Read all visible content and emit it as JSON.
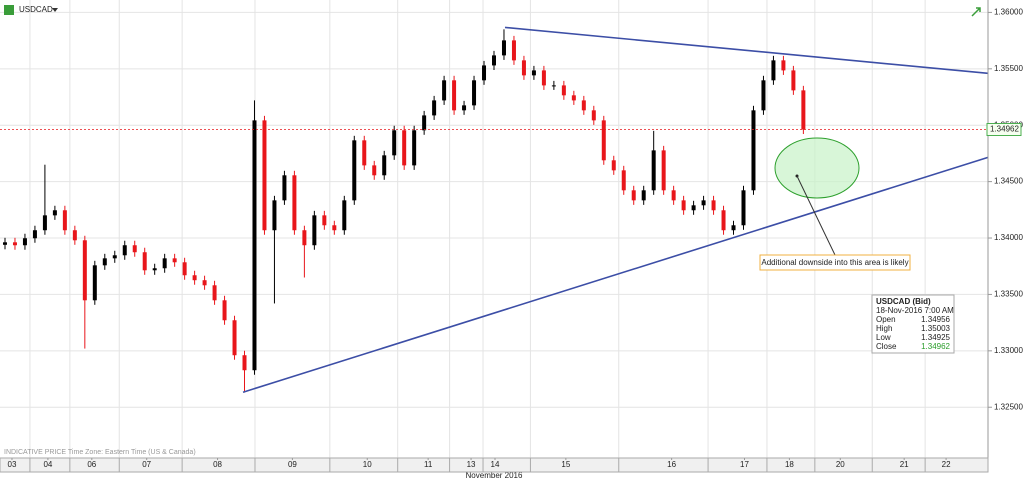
{
  "chart_data": {
    "type": "candlestick",
    "title": "USDCAD",
    "note": "INDICATIVE PRICE  Time Zone: Eastern Time (US & Canada)",
    "xlabel": "November 2016",
    "annotation": "Additional downside into this area is likely",
    "up_color": "#000000",
    "down_color": "#e8161b",
    "trendline_color": "#3c4ea6",
    "grid": true,
    "xlim": [
      0,
      99
    ],
    "ylim": [
      1.3205,
      1.3611
    ],
    "yticks": [
      {
        "value": 1.325,
        "label": "1.32500"
      },
      {
        "value": 1.33,
        "label": "1.33000"
      },
      {
        "value": 1.335,
        "label": "1.33500"
      },
      {
        "value": 1.34,
        "label": "1.34000"
      },
      {
        "value": 1.345,
        "label": "1.34500"
      },
      {
        "value": 1.35,
        "label": "1.35000"
      },
      {
        "value": 1.355,
        "label": "1.35500"
      },
      {
        "value": 1.36,
        "label": "1.36000"
      }
    ],
    "xticks": [
      {
        "value": 1.2,
        "label": "03"
      },
      {
        "value": 4.8,
        "label": "04"
      },
      {
        "value": 9.2,
        "label": "06"
      },
      {
        "value": 14.7,
        "label": "07"
      },
      {
        "value": 21.8,
        "label": "08"
      },
      {
        "value": 29.3,
        "label": "09"
      },
      {
        "value": 36.8,
        "label": "10"
      },
      {
        "value": 42.9,
        "label": "11"
      },
      {
        "value": 47.2,
        "label": "13"
      },
      {
        "value": 49.6,
        "label": "14"
      },
      {
        "value": 56.7,
        "label": "15"
      },
      {
        "value": 67.3,
        "label": "16"
      },
      {
        "value": 74.6,
        "label": "17"
      },
      {
        "value": 79.1,
        "label": "18"
      },
      {
        "value": 84.2,
        "label": "20"
      },
      {
        "value": 90.6,
        "label": "21"
      },
      {
        "value": 94.8,
        "label": "22"
      }
    ],
    "x": [
      0.5,
      1.5,
      2.5,
      3.5,
      4.5,
      5.5,
      6.5,
      7.5,
      8.5,
      9.5,
      10.5,
      11.5,
      12.5,
      13.5,
      14.5,
      15.5,
      16.5,
      17.5,
      18.5,
      19.5,
      20.5,
      21.5,
      22.5,
      23.5,
      24.5,
      25.5,
      26.5,
      27.5,
      28.5,
      29.5,
      30.5,
      31.5,
      32.5,
      33.5,
      34.5,
      35.5,
      36.5,
      37.5,
      38.5,
      39.5,
      40.5,
      41.5,
      42.5,
      43.5,
      44.5,
      45.5,
      46.5,
      47.5,
      48.5,
      49.5,
      50.5,
      51.5,
      52.5,
      53.5,
      54.5,
      55.5,
      56.5,
      57.5,
      58.5,
      59.5,
      60.5,
      61.5,
      62.5,
      63.5,
      64.5,
      65.5,
      66.5,
      67.5,
      68.5,
      69.5,
      70.5,
      71.5,
      72.5,
      73.5,
      74.5,
      75.5,
      76.5,
      77.5,
      78.5,
      79.5,
      80.5
    ],
    "open": [
      1.3394,
      1.33962,
      1.33936,
      1.33998,
      1.34069,
      1.34201,
      1.34246,
      1.34069,
      1.3398,
      1.33448,
      1.33758,
      1.3382,
      1.33847,
      1.33936,
      1.33874,
      1.33714,
      1.33732,
      1.3382,
      1.33785,
      1.3367,
      1.33626,
      1.33581,
      1.33448,
      1.33271,
      1.32961,
      1.32828,
      1.35043,
      1.34069,
      1.34334,
      1.34556,
      1.34069,
      1.33936,
      1.34201,
      1.34113,
      1.34069,
      1.34334,
      1.34866,
      1.34644,
      1.34556,
      1.34733,
      1.34955,
      1.34644,
      1.34955,
      1.35087,
      1.3522,
      1.35398,
      1.35132,
      1.35176,
      1.35398,
      1.3553,
      1.35619,
      1.35752,
      1.35575,
      1.35442,
      1.35486,
      1.35353,
      1.35353,
      1.35265,
      1.3522,
      1.35132,
      1.35043,
      1.34689,
      1.346,
      1.34423,
      1.34334,
      1.34423,
      1.34777,
      1.34423,
      1.34334,
      1.34246,
      1.3429,
      1.34334,
      1.34246,
      1.34069,
      1.34113,
      1.34423,
      1.35132,
      1.35398,
      1.35575,
      1.35486,
      1.35309
    ],
    "high": [
      1.34002,
      1.34002,
      1.34038,
      1.34109,
      1.3465,
      1.34286,
      1.34286,
      1.34109,
      1.3402,
      1.33798,
      1.3386,
      1.33887,
      1.33976,
      1.33976,
      1.33914,
      1.33772,
      1.3386,
      1.3386,
      1.33825,
      1.3371,
      1.33666,
      1.33621,
      1.33488,
      1.33311,
      1.33001,
      1.3522,
      1.35083,
      1.34374,
      1.34596,
      1.34596,
      1.34109,
      1.34241,
      1.34241,
      1.34153,
      1.34374,
      1.34906,
      1.34906,
      1.34684,
      1.34773,
      1.34995,
      1.34995,
      1.34995,
      1.35127,
      1.3526,
      1.35438,
      1.35438,
      1.35216,
      1.35438,
      1.3557,
      1.35659,
      1.3585,
      1.35792,
      1.35615,
      1.35526,
      1.35526,
      1.35393,
      1.35393,
      1.35305,
      1.3526,
      1.35172,
      1.35083,
      1.34729,
      1.3464,
      1.34463,
      1.34463,
      1.3495,
      1.34817,
      1.34463,
      1.34374,
      1.3433,
      1.34374,
      1.34374,
      1.34286,
      1.34153,
      1.34463,
      1.35172,
      1.35438,
      1.35615,
      1.35615,
      1.35526,
      1.35349
    ],
    "low": [
      1.339,
      1.33896,
      1.33896,
      1.33958,
      1.34029,
      1.34161,
      1.34029,
      1.3394,
      1.3302,
      1.33408,
      1.33718,
      1.3378,
      1.33807,
      1.33834,
      1.33674,
      1.33674,
      1.33692,
      1.33745,
      1.3363,
      1.33586,
      1.33541,
      1.33408,
      1.33231,
      1.32921,
      1.3263,
      1.32788,
      1.34029,
      1.3342,
      1.34294,
      1.34029,
      1.3365,
      1.33896,
      1.34073,
      1.34029,
      1.34029,
      1.34294,
      1.34604,
      1.34516,
      1.34516,
      1.34693,
      1.34604,
      1.34604,
      1.34915,
      1.35047,
      1.3518,
      1.35092,
      1.35092,
      1.35136,
      1.35358,
      1.3549,
      1.35579,
      1.35535,
      1.35402,
      1.35402,
      1.35313,
      1.35313,
      1.35225,
      1.3518,
      1.35092,
      1.35003,
      1.34649,
      1.3456,
      1.34383,
      1.34294,
      1.34294,
      1.34383,
      1.34383,
      1.34294,
      1.34206,
      1.34206,
      1.3425,
      1.34206,
      1.34029,
      1.34029,
      1.34073,
      1.34383,
      1.35092,
      1.35358,
      1.35446,
      1.35269,
      1.34922
    ],
    "close": [
      1.33962,
      1.33936,
      1.33998,
      1.34069,
      1.34201,
      1.34246,
      1.34069,
      1.3398,
      1.33448,
      1.33758,
      1.3382,
      1.33847,
      1.33936,
      1.33874,
      1.33714,
      1.33732,
      1.3382,
      1.33785,
      1.3367,
      1.33626,
      1.33581,
      1.33448,
      1.33271,
      1.32961,
      1.32828,
      1.35043,
      1.34069,
      1.34334,
      1.34556,
      1.34069,
      1.33936,
      1.34201,
      1.34113,
      1.34069,
      1.34334,
      1.34866,
      1.34644,
      1.34556,
      1.34733,
      1.34955,
      1.34644,
      1.34955,
      1.35087,
      1.3522,
      1.35398,
      1.35132,
      1.35176,
      1.35398,
      1.3553,
      1.35619,
      1.35752,
      1.35575,
      1.35442,
      1.35486,
      1.35353,
      1.35353,
      1.35265,
      1.3522,
      1.35132,
      1.35043,
      1.34689,
      1.346,
      1.34423,
      1.34334,
      1.34423,
      1.34777,
      1.34423,
      1.34334,
      1.34246,
      1.3429,
      1.34334,
      1.34246,
      1.34069,
      1.34113,
      1.34423,
      1.35132,
      1.35398,
      1.35575,
      1.35486,
      1.35309,
      1.34962
    ],
    "trendlines": [
      {
        "x": [
          50.6,
          99
        ],
        "y": [
          1.35867,
          1.3546
        ]
      },
      {
        "x": [
          24.35,
          99
        ],
        "y": [
          1.32633,
          1.34715
        ]
      }
    ],
    "info": {
      "title": "USDCAD (Bid)",
      "time": "18-Nov-2016 7:00 AM",
      "rows": [
        {
          "label": "Open",
          "value": 1.34956
        },
        {
          "label": "High",
          "value": 1.35003
        },
        {
          "label": "Low",
          "value": 1.34925
        },
        {
          "label": "Close",
          "value": 1.34962
        }
      ]
    }
  }
}
